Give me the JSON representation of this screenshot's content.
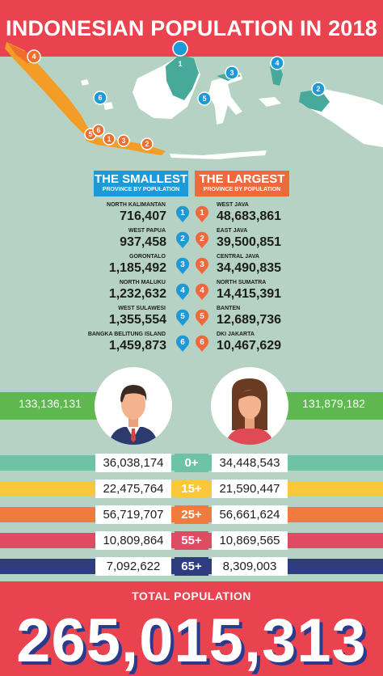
{
  "title": "INDONESIAN POPULATION IN 2018",
  "colors": {
    "red": "#e8434e",
    "teal_map": "#46a99a",
    "orange_map": "#f39c26",
    "blue": "#1d99d8",
    "orange": "#ee6a3c",
    "green": "#5fb74f"
  },
  "smallest": {
    "heading": "THE SMALLEST",
    "subheading": "PROVINCE BY POPULATION",
    "items": [
      {
        "rank": "1",
        "name": "NORTH KALIMANTAN",
        "value": "716,407"
      },
      {
        "rank": "2",
        "name": "WEST PAPUA",
        "value": "937,458"
      },
      {
        "rank": "3",
        "name": "GORONTALO",
        "value": "1,185,492"
      },
      {
        "rank": "4",
        "name": "NORTH MALUKU",
        "value": "1,232,632"
      },
      {
        "rank": "5",
        "name": "WEST SULAWESI",
        "value": "1,355,554"
      },
      {
        "rank": "6",
        "name": "BANGKA BELITUNG ISLAND",
        "value": "1,459,873"
      }
    ]
  },
  "largest": {
    "heading": "THE LARGEST",
    "subheading": "PROVINCE BY POPULATION",
    "items": [
      {
        "rank": "1",
        "name": "WEST JAVA",
        "value": "48,683,861"
      },
      {
        "rank": "2",
        "name": "EAST JAVA",
        "value": "39,500,851"
      },
      {
        "rank": "3",
        "name": "CENTRAL JAVA",
        "value": "34,490,835"
      },
      {
        "rank": "4",
        "name": "NORTH SUMATRA",
        "value": "14,415,391"
      },
      {
        "rank": "5",
        "name": "BANTEN",
        "value": "12,689,736"
      },
      {
        "rank": "6",
        "name": "DKI JAKARTA",
        "value": "10,467,629"
      }
    ]
  },
  "gender": {
    "male": "133,136,131",
    "female": "131,879,182"
  },
  "age_groups": [
    {
      "label": "0+",
      "male": "36,038,174",
      "female": "34,448,543",
      "color": "#6ec3a7"
    },
    {
      "label": "15+",
      "male": "22,475,764",
      "female": "21,590,447",
      "color": "#f8c73a"
    },
    {
      "label": "25+",
      "male": "56,719,707",
      "female": "56,661,624",
      "color": "#ef7c3e"
    },
    {
      "label": "55+",
      "male": "10,809,864",
      "female": "10,869,565",
      "color": "#e04b64"
    },
    {
      "label": "65+",
      "male": "7,092,622",
      "female": "8,309,003",
      "color": "#2f3c7e"
    }
  ],
  "total": {
    "label": "TOTAL POPULATION",
    "value": "265,015,313"
  },
  "map_pins": {
    "blue": [
      "1",
      "2",
      "3",
      "4",
      "5",
      "6"
    ],
    "orange": [
      "4",
      "5",
      "6",
      "1",
      "3",
      "2"
    ]
  }
}
